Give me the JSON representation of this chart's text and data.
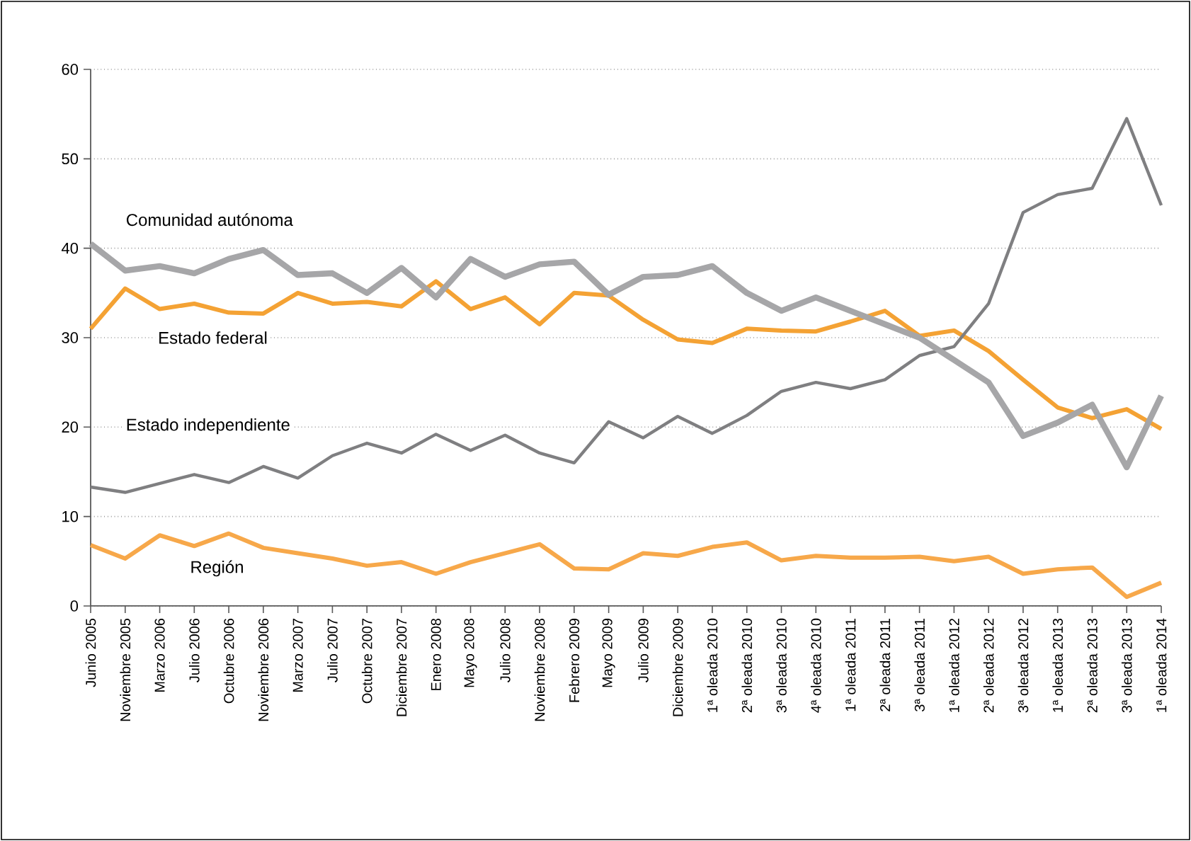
{
  "chart_data": {
    "type": "line",
    "categories": [
      "Junio 2005",
      "Noviembre 2005",
      "Marzo 2006",
      "Julio 2006",
      "Octubre 2006",
      "Noviembre 2006",
      "Marzo 2007",
      "Julio 2007",
      "Octubre 2007",
      "Diciembre 2007",
      "Enero 2008",
      "Mayo 2008",
      "Julio 2008",
      "Noviembre 2008",
      "Febrero 2009",
      "Mayo 2009",
      "Julio 2009",
      "Diciembre 2009",
      "1ª oleada 2010",
      "2ª oleada 2010",
      "3ª oleada 2010",
      "4ª oleada 2010",
      "1ª oleada 2011",
      "2ª oleada 2011",
      "3ª oleada 2011",
      "1ª oleada 2012",
      "2ª oleada 2012",
      "3ª oleada 2012",
      "1ª oleada 2013",
      "2ª oleada 2013",
      "3ª oleada 2013",
      "1ª oleada 2014"
    ],
    "series": [
      {
        "name": "Comunidad autónoma",
        "color": "#a6a6a8",
        "values": [
          40.5,
          37.5,
          38,
          37.2,
          38.8,
          39.8,
          37,
          37.2,
          35,
          37.8,
          34.5,
          38.8,
          36.8,
          38.2,
          38.5,
          34.8,
          36.8,
          37,
          38,
          35,
          33,
          34.5,
          33,
          31.5,
          30,
          27.5,
          25,
          19,
          20.5,
          22.5,
          15.5,
          23.5
        ]
      },
      {
        "name": "Estado federal",
        "color": "#f4a234",
        "values": [
          31,
          35.5,
          33.2,
          33.8,
          32.8,
          32.7,
          35,
          33.8,
          34,
          33.5,
          36.3,
          33.2,
          34.5,
          31.5,
          35,
          34.7,
          32,
          29.8,
          29.4,
          31,
          30.8,
          30.7,
          31.8,
          33,
          30.2,
          30.8,
          28.5,
          25.3,
          22.2,
          21,
          22,
          19.8
        ]
      },
      {
        "name": "Estado independiente",
        "color": "#7f7f81",
        "values": [
          13.3,
          12.7,
          13.7,
          14.7,
          13.8,
          15.6,
          14.3,
          16.8,
          18.2,
          17.1,
          19.2,
          17.4,
          19.1,
          17.1,
          16,
          20.6,
          18.8,
          21.2,
          19.3,
          21.3,
          24,
          25,
          24.3,
          25.3,
          28,
          29,
          33.8,
          44,
          46,
          46.7,
          54.5,
          44.8
        ]
      },
      {
        "name": "Región",
        "color": "#f7a84a",
        "values": [
          6.8,
          5.3,
          7.9,
          6.7,
          8.1,
          6.5,
          5.9,
          5.3,
          4.5,
          4.9,
          3.6,
          4.9,
          5.9,
          6.9,
          4.2,
          4.1,
          5.9,
          5.6,
          6.6,
          7.1,
          5.1,
          5.6,
          5.4,
          5.4,
          5.5,
          5.0,
          5.5,
          3.6,
          4.1,
          4.3,
          1.0,
          2.6
        ]
      }
    ],
    "ylim": [
      0,
      60
    ],
    "yticks": [
      0,
      10,
      20,
      30,
      40,
      50,
      60
    ],
    "grid": "y",
    "legend": false,
    "marker": "none",
    "line_style": "solid"
  }
}
